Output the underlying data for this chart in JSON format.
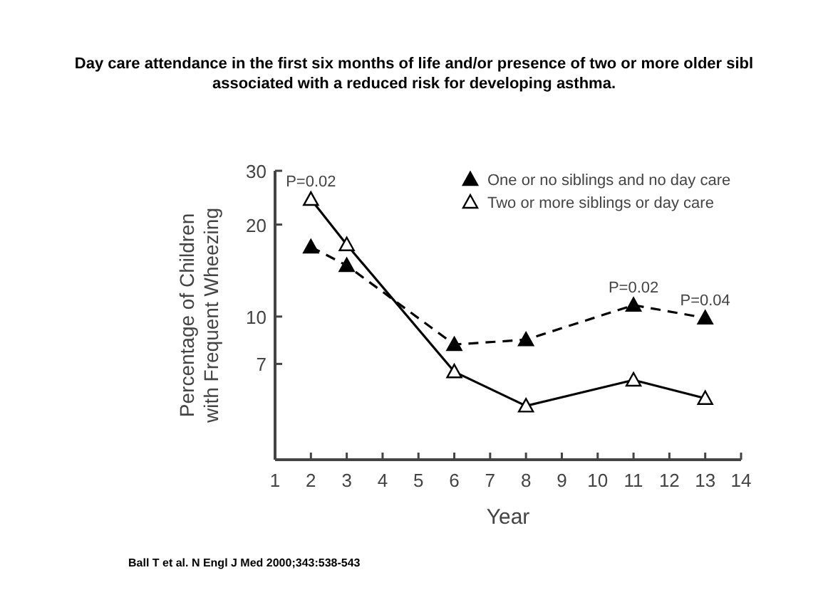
{
  "chart_data": {
    "type": "line",
    "title": "Day care attendance in the first six months of life and/or presence of two or more older sibl\nassociated with a reduced risk for developing asthma.",
    "xlabel": "Year",
    "ylabel": "Percentage of Children\nwith Frequent Wheezing",
    "x": [
      2,
      3,
      6,
      8,
      11,
      13
    ],
    "series": [
      {
        "name": "One or no siblings and no day care",
        "color": "#000000",
        "line_style": "dashed",
        "values": [
          16.9,
          14.7,
          8.1,
          8.4,
          10.9,
          9.9
        ]
      },
      {
        "name": "Two or more siblings or day care",
        "color": "#000000",
        "line_style": "solid",
        "values": [
          24.2,
          17.2,
          6.6,
          5.1,
          6.2,
          5.4
        ]
      }
    ],
    "xlim": [
      1,
      14
    ],
    "xticks": [
      1,
      2,
      3,
      4,
      5,
      6,
      7,
      8,
      9,
      10,
      11,
      12,
      13,
      14
    ],
    "ylim": [
      3.4,
      30
    ],
    "yticks": [
      7,
      10,
      20,
      30
    ],
    "log": true,
    "marker": "triangle",
    "legend": "top right",
    "grid": false,
    "annotations": [
      {
        "text": "P=0.02",
        "x": 2,
        "y": 24.2
      },
      {
        "text": "P=0.02",
        "x": 11,
        "y": 10.9
      },
      {
        "text": "P=0.04",
        "x": 13,
        "y": 9.9
      },
      "Ball T et al. N Engl J Med 2000;343:538-543"
    ]
  }
}
